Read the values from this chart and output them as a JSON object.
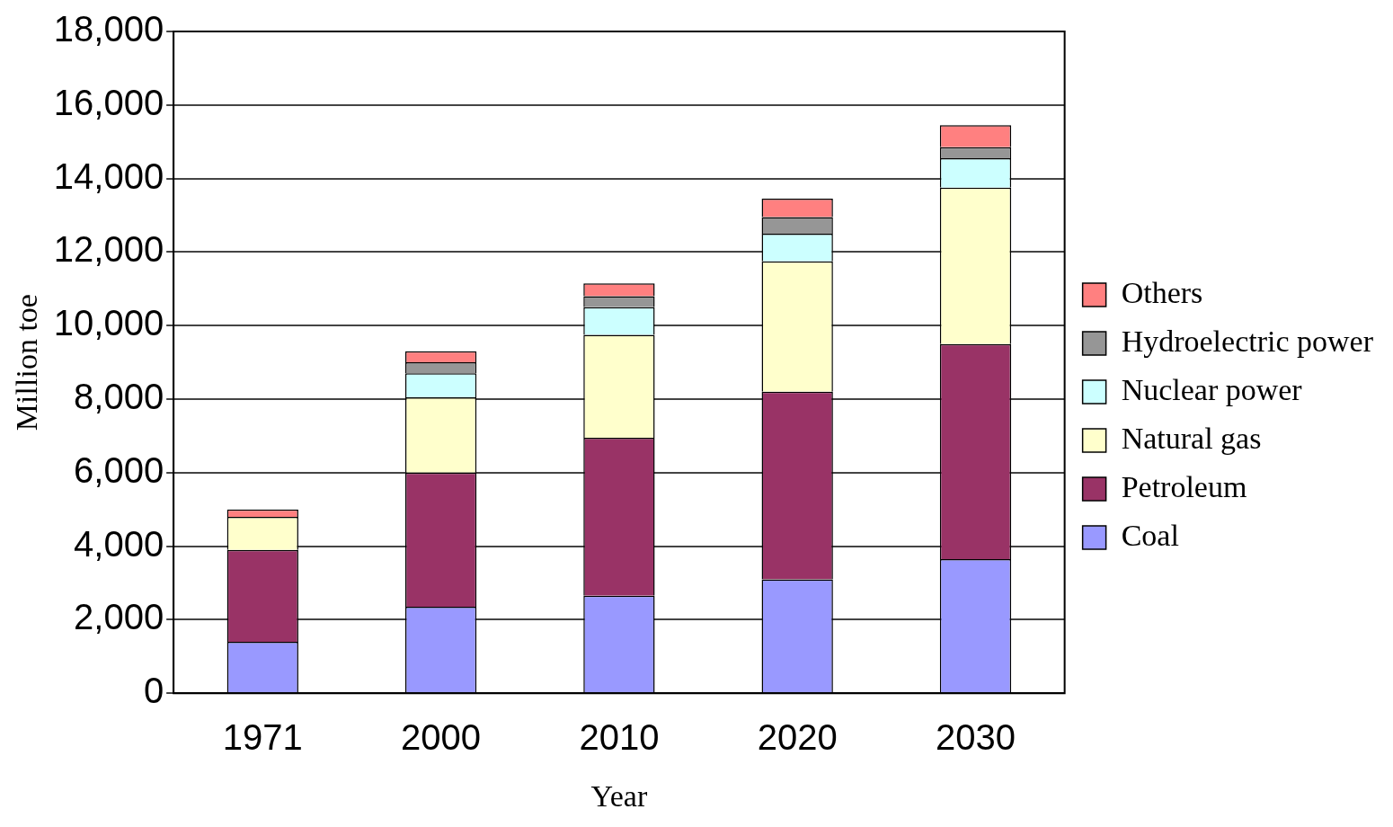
{
  "chart_data": {
    "type": "bar",
    "stacked": true,
    "xlabel": "Year",
    "ylabel": "Million toe",
    "categories": [
      "1971",
      "2000",
      "2010",
      "2020",
      "2030"
    ],
    "series": [
      {
        "name": "Coal",
        "color": "#9999ff",
        "values": [
          1400,
          2350,
          2650,
          3100,
          3650
        ]
      },
      {
        "name": "Petroleum",
        "color": "#993366",
        "values": [
          2500,
          3650,
          4300,
          5100,
          5850
        ]
      },
      {
        "name": "Natural gas",
        "color": "#ffffcc",
        "values": [
          900,
          2050,
          2800,
          3550,
          4250
        ]
      },
      {
        "name": "Nuclear power",
        "color": "#ccffff",
        "values": [
          0,
          650,
          750,
          750,
          800
        ]
      },
      {
        "name": "Hydroelectric power",
        "color": "#969696",
        "values": [
          0,
          300,
          300,
          450,
          300
        ]
      },
      {
        "name": "Others",
        "color": "#ff8080",
        "values": [
          200,
          300,
          350,
          500,
          600
        ]
      }
    ],
    "ylim": [
      0,
      18000
    ],
    "yticks": [
      0,
      {
        "value": 2000,
        "label": "2,000"
      },
      {
        "value": 4000,
        "label": "4,000"
      },
      {
        "value": 6000,
        "label": "6,000"
      },
      {
        "value": 8000,
        "label": "8,000"
      },
      {
        "value": 10000,
        "label": "10,000"
      },
      {
        "value": 12000,
        "label": "12,000"
      },
      {
        "value": 14000,
        "label": "14,000"
      },
      {
        "value": 16000,
        "label": "16,000"
      },
      {
        "value": 18000,
        "label": "18,000"
      }
    ],
    "grid": "y",
    "legend": "right"
  }
}
